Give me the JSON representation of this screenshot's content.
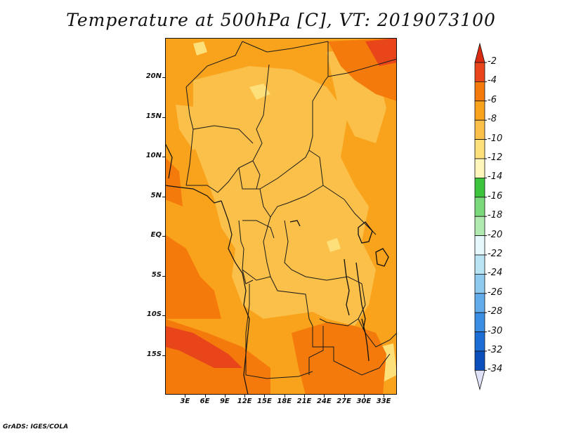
{
  "title": "Temperature at 500hPa [C], VT: 2019073100",
  "credit": "GrADS: IGES/COLA",
  "map": {
    "variable": "Temperature at 500hPa",
    "units": "C",
    "valid_time": "2019073100",
    "lat_labels": [
      "20N",
      "15N",
      "10N",
      "5N",
      "EQ",
      "5S",
      "10S",
      "15S"
    ],
    "lat_values": [
      20,
      15,
      10,
      5,
      0,
      -5,
      -10,
      -15
    ],
    "lon_labels": [
      "3E",
      "6E",
      "9E",
      "12E",
      "15E",
      "18E",
      "21E",
      "24E",
      "27E",
      "30E",
      "33E"
    ],
    "lon_values": [
      3,
      6,
      9,
      12,
      15,
      18,
      21,
      24,
      27,
      30,
      33
    ],
    "extent": {
      "lon_min": 0,
      "lon_max": 35,
      "lat_min": -20,
      "lat_max": 25
    }
  },
  "colorbar": {
    "labels": [
      "-2",
      "-4",
      "-6",
      "-8",
      "-10",
      "-12",
      "-14",
      "-16",
      "-18",
      "-20",
      "-22",
      "-24",
      "-26",
      "-28",
      "-30",
      "-32",
      "-34"
    ],
    "colors": [
      "#e8451a",
      "#f57a0c",
      "#f9a21b",
      "#fbc049",
      "#fde07a",
      "#fff6bb",
      "#3cc43c",
      "#7ad97a",
      "#b0eab0",
      "#e6f8fc",
      "#b8e4f4",
      "#8ecaf0",
      "#62acec",
      "#3a8ee4",
      "#1a6ed6",
      "#0b4fbd",
      "#0a2a8a"
    ],
    "top_arrow_color": "#d92a12",
    "bottom_arrow_color": "#e0e2f8"
  },
  "palette": {
    "band_4_6": "#f9a21b",
    "band_6_8": "#fbc049",
    "band_8_10": "#fde07a",
    "band_2_4": "#f57a0c",
    "band_0_2": "#e8451a",
    "ocean_light": "#fbc049"
  }
}
